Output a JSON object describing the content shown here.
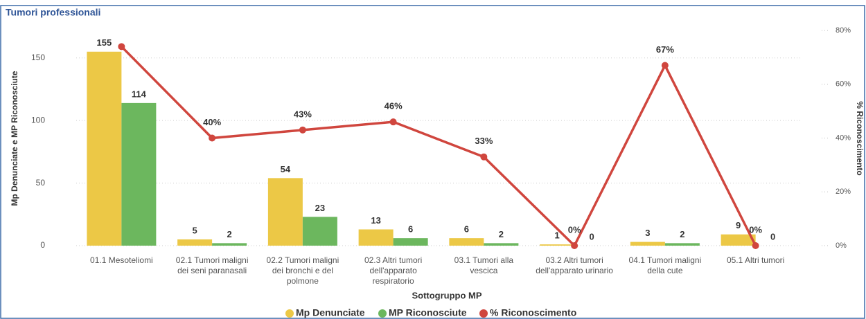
{
  "chart_data": {
    "type": "bar_line",
    "title": "Tumori professionali",
    "x_label": "Sottogruppo MP",
    "y_label": "Mp Denunciate e MP Riconosciute",
    "y2_label": "% Riconoscimento",
    "categories": [
      "01.1 Mesoteliomi",
      "02.1 Tumori maligni\ndei seni paranasali",
      "02.2 Tumori maligni\ndei bronchi e del\npolmone",
      "02.3 Altri tumori\ndell'apparato\nrespiratorio",
      "03.1 Tumori alla\nvescica",
      "03.2 Altri tumori\ndell'apparato urinario",
      "04.1 Tumori maligni\ndella cute",
      "05.1 Altri tumori"
    ],
    "series": [
      {
        "name": "Mp Denunciate",
        "color": "#ECC846",
        "type": "bar",
        "values": [
          155,
          5,
          54,
          13,
          6,
          1,
          3,
          9
        ]
      },
      {
        "name": "MP Riconosciute",
        "color": "#6CB75E",
        "type": "bar",
        "values": [
          114,
          2,
          23,
          6,
          2,
          0,
          2,
          0
        ]
      },
      {
        "name": "% Riconoscimento",
        "color": "#D0463E",
        "type": "line",
        "axis": "y2",
        "values": [
          74,
          40,
          43,
          46,
          33,
          0,
          67,
          0
        ],
        "value_labels": [
          null,
          "40%",
          "43%",
          "46%",
          "33%",
          "0%",
          "67%",
          "0%"
        ]
      }
    ],
    "ylim": [
      0,
      172
    ],
    "yticks": [
      0,
      50,
      100,
      150
    ],
    "y2lim": [
      0,
      80
    ],
    "y2ticks": [
      {
        "value": 0,
        "label": "0%"
      },
      {
        "value": 20,
        "label": "20%"
      },
      {
        "value": 40,
        "label": "40%"
      },
      {
        "value": 60,
        "label": "60%"
      },
      {
        "value": 80,
        "label": "80%"
      }
    ],
    "grid": true,
    "legend": "bottom"
  }
}
